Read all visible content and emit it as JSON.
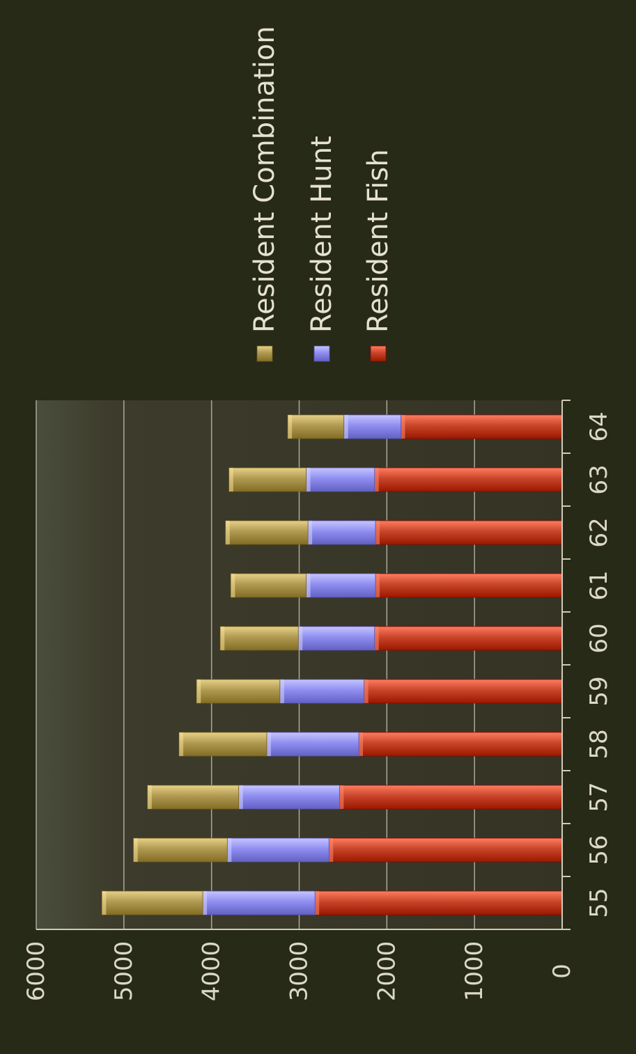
{
  "chart_data": {
    "type": "bar",
    "stacked": true,
    "orientation": "rotated 90deg counter-clockwise (vertical bars printed sideways)",
    "categories": [
      "55",
      "56",
      "57",
      "58",
      "59",
      "60",
      "61",
      "62",
      "63",
      "64"
    ],
    "series": [
      {
        "name": "Resident Fish",
        "color": "#c8452a",
        "values": [
          2820,
          2660,
          2540,
          2320,
          2260,
          2140,
          2130,
          2130,
          2140,
          1840
        ]
      },
      {
        "name": "Resident Hunt",
        "color": "#8f8ef0",
        "values": [
          1280,
          1160,
          1150,
          1050,
          960,
          870,
          790,
          770,
          780,
          650
        ]
      },
      {
        "name": "Resident Combination",
        "color": "#b09a52",
        "values": [
          1150,
          1070,
          1040,
          1000,
          950,
          890,
          860,
          940,
          880,
          640
        ]
      }
    ],
    "yticks": [
      "0",
      "1000",
      "2000",
      "3000",
      "4000",
      "5000",
      "6000"
    ],
    "ylim": [
      0,
      6000
    ],
    "grid": true,
    "legend_position": "right",
    "title": "",
    "xlabel": "",
    "ylabel": ""
  },
  "colors": {
    "background": "#262a17",
    "plot_area": "#3a3828",
    "gridline": "#bdbdb0",
    "text": "#e6e1d0"
  }
}
